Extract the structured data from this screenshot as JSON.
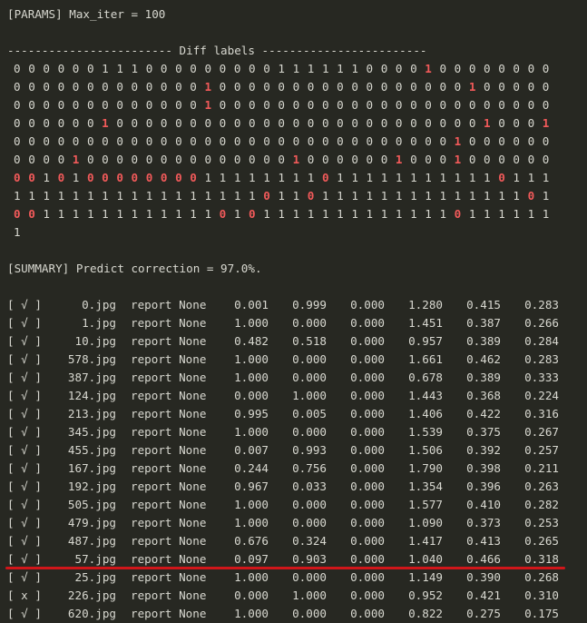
{
  "params_line": "[PARAMS] Max_iter = 100",
  "diff_header": "------------------------ Diff labels ------------------------",
  "diff_rows": [
    "0 0 0 0 0 0 1 1 1 0 0 0 0 0 0 0 0 0 1 1 1 1 1 1 0 0 0 0 1 0 0 0 0 0 0 0 0",
    "0 0 0 0 0 0 0 0 0 0 0 0 0 1 0 0 0 0 0 0 0 0 0 0 0 0 0 0 0 0 0 1 0 0 0 0 0",
    "0 0 0 0 0 0 0 0 0 0 0 0 0 1 0 0 0 0 0 0 0 0 0 0 0 0 0 0 0 0 0 0 0 0 0 0 0",
    "0 0 0 0 0 0 1 0 0 0 0 0 0 0 0 0 0 0 0 0 0 0 0 0 0 0 0 0 0 0 0 0 1 0 0 0 1",
    "0 0 0 0 0 0 0 0 0 0 0 0 0 0 0 0 0 0 0 0 0 0 0 0 0 0 0 0 0 0 1 0 0 0 0 0 0",
    "0 0 0 0 1 0 0 0 0 0 0 0 0 0 0 0 0 0 0 1 0 0 0 0 0 0 1 0 0 0 1 0 0 0 0 0 0",
    "0 0 1 0 1 0 0 0 0 0 0 0 0 1 1 1 1 1 1 1 1 0 1 1 1 1 1 1 1 1 1 1 1 0 1 1 1",
    "1 1 1 1 1 1 1 1 1 1 1 1 1 1 1 1 1 0 1 1 0 1 1 1 1 1 1 1 1 1 1 1 1 1 1 0 1",
    "0 0 1 1 1 1 1 1 1 1 1 1 1 1 0 1 0 1 1 1 1 1 1 1 1 1 1 1 1 1 0 1 1 1 1 1 1",
    "1"
  ],
  "summary_line": "[SUMMARY] Predict correction = 97.0%.",
  "results": [
    {
      "check": "[ √ ]",
      "file": "0.jpg",
      "report": "report None",
      "v": [
        "0.001",
        "0.999",
        "0.000",
        "1.280",
        "0.415",
        "0.283"
      ]
    },
    {
      "check": "[ √ ]",
      "file": "1.jpg",
      "report": "report None",
      "v": [
        "1.000",
        "0.000",
        "0.000",
        "1.451",
        "0.387",
        "0.266"
      ]
    },
    {
      "check": "[ √ ]",
      "file": "10.jpg",
      "report": "report None",
      "v": [
        "0.482",
        "0.518",
        "0.000",
        "0.957",
        "0.389",
        "0.284"
      ]
    },
    {
      "check": "[ √ ]",
      "file": "578.jpg",
      "report": "report None",
      "v": [
        "1.000",
        "0.000",
        "0.000",
        "1.661",
        "0.462",
        "0.283"
      ]
    },
    {
      "check": "[ √ ]",
      "file": "387.jpg",
      "report": "report None",
      "v": [
        "1.000",
        "0.000",
        "0.000",
        "0.678",
        "0.389",
        "0.333"
      ]
    },
    {
      "check": "[ √ ]",
      "file": "124.jpg",
      "report": "report None",
      "v": [
        "0.000",
        "1.000",
        "0.000",
        "1.443",
        "0.368",
        "0.224"
      ]
    },
    {
      "check": "[ √ ]",
      "file": "213.jpg",
      "report": "report None",
      "v": [
        "0.995",
        "0.005",
        "0.000",
        "1.406",
        "0.422",
        "0.316"
      ]
    },
    {
      "check": "[ √ ]",
      "file": "345.jpg",
      "report": "report None",
      "v": [
        "1.000",
        "0.000",
        "0.000",
        "1.539",
        "0.375",
        "0.267"
      ]
    },
    {
      "check": "[ √ ]",
      "file": "455.jpg",
      "report": "report None",
      "v": [
        "0.007",
        "0.993",
        "0.000",
        "1.506",
        "0.392",
        "0.257"
      ]
    },
    {
      "check": "[ √ ]",
      "file": "167.jpg",
      "report": "report None",
      "v": [
        "0.244",
        "0.756",
        "0.000",
        "1.790",
        "0.398",
        "0.211"
      ]
    },
    {
      "check": "[ √ ]",
      "file": "192.jpg",
      "report": "report None",
      "v": [
        "0.967",
        "0.033",
        "0.000",
        "1.354",
        "0.396",
        "0.263"
      ]
    },
    {
      "check": "[ √ ]",
      "file": "505.jpg",
      "report": "report None",
      "v": [
        "1.000",
        "0.000",
        "0.000",
        "1.577",
        "0.410",
        "0.282"
      ]
    },
    {
      "check": "[ √ ]",
      "file": "479.jpg",
      "report": "report None",
      "v": [
        "1.000",
        "0.000",
        "0.000",
        "1.090",
        "0.373",
        "0.253"
      ]
    },
    {
      "check": "[ √ ]",
      "file": "487.jpg",
      "report": "report None",
      "v": [
        "0.676",
        "0.324",
        "0.000",
        "1.417",
        "0.413",
        "0.265"
      ]
    },
    {
      "check": "[ √ ]",
      "file": "57.jpg",
      "report": "report None",
      "v": [
        "0.097",
        "0.903",
        "0.000",
        "1.040",
        "0.466",
        "0.318"
      ]
    },
    {
      "check": "[ √ ]",
      "file": "25.jpg",
      "report": "report None",
      "v": [
        "1.000",
        "0.000",
        "0.000",
        "1.149",
        "0.390",
        "0.268"
      ]
    },
    {
      "check": "[ x ]",
      "file": "226.jpg",
      "report": "report None",
      "v": [
        "0.000",
        "1.000",
        "0.000",
        "0.952",
        "0.421",
        "0.310"
      ]
    },
    {
      "check": "[ √ ]",
      "file": "620.jpg",
      "report": "report None",
      "v": [
        "1.000",
        "0.000",
        "0.000",
        "0.822",
        "0.275",
        "0.175"
      ]
    }
  ],
  "colors": {
    "background": "#272822",
    "text": "#d8d8d0",
    "diff_highlight": "#f25a5a",
    "annotation_underline": "#d0161a"
  }
}
